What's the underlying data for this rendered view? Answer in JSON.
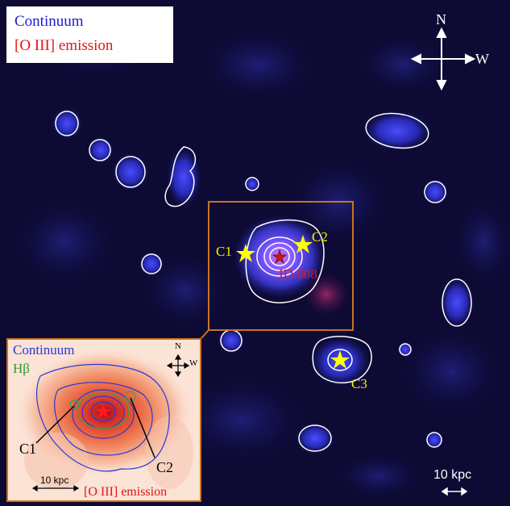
{
  "legend": {
    "continuum": "Continuum",
    "oiii": "[O III] emission"
  },
  "compass": {
    "north": "N",
    "west": "W"
  },
  "scale_bar": "10 kpc",
  "labels": {
    "target": "ID 608",
    "c1": "C1",
    "c2": "C2",
    "c3": "C3"
  },
  "inset": {
    "continuum": "Continuum",
    "hbeta": "Hβ",
    "oiii": "[O III] emission",
    "north": "N",
    "west": "W",
    "scale_bar": "10 kpc",
    "c1": "C1",
    "c2": "C2"
  },
  "colors": {
    "background": "#0d0a34",
    "contour": "#ffffff",
    "star_yellow": "#ffff00",
    "star_red": "#ff0000",
    "box": "#c9741f",
    "inset_bg": "#fbe3d6"
  }
}
